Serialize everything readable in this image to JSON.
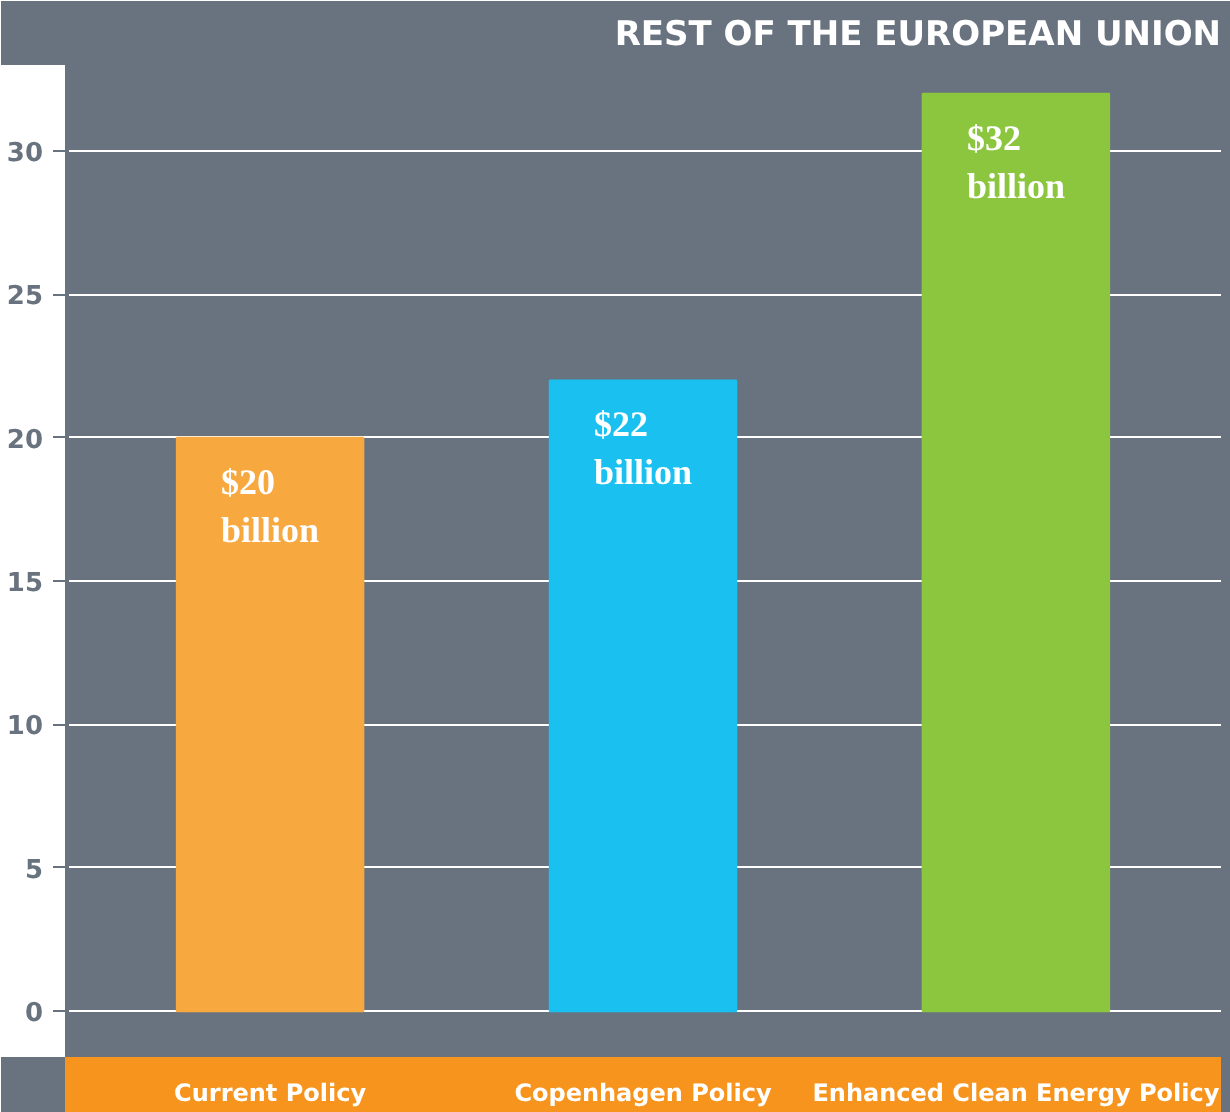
{
  "chart_data": {
    "type": "bar",
    "title": "REST OF THE EUROPEAN UNION",
    "categories": [
      "Current Policy",
      "Copenhagen Policy",
      "Enhanced Clean Energy Policy"
    ],
    "values": [
      20,
      22,
      32
    ],
    "colors": [
      "#f7a83f",
      "#19c0f0",
      "#8cc63f"
    ],
    "value_labels": [
      "$20 billion",
      "$22 billion",
      "$32 billion"
    ],
    "ylim": [
      -1.6,
      33
    ],
    "yticks": [
      0,
      5,
      10,
      15,
      20,
      25,
      30
    ],
    "grid": "y"
  }
}
